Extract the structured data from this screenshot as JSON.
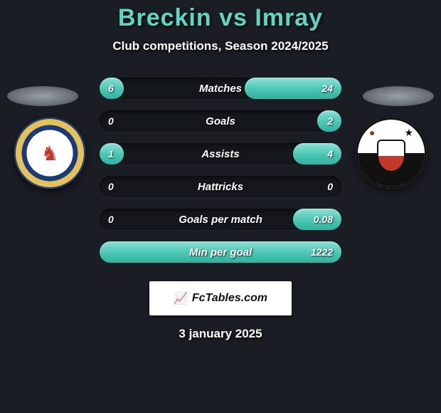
{
  "header": {
    "title": "Breckin vs Imray",
    "subtitle": "Club competitions, Season 2024/2025"
  },
  "teams": {
    "left": {
      "crest_name": "crewe-alexandra-crest"
    },
    "right": {
      "crest_name": "bromley-fc-crest"
    }
  },
  "stats": {
    "track_color": "#14171c",
    "bar_color_left": "#4fc9b7",
    "bar_color_right": "#4fc9b7",
    "label_color": "#ffffff",
    "rows": [
      {
        "label": "Matches",
        "left": "6",
        "right": "24",
        "left_pct": 10,
        "right_pct": 40
      },
      {
        "label": "Goals",
        "left": "0",
        "right": "2",
        "left_pct": 0,
        "right_pct": 10
      },
      {
        "label": "Assists",
        "left": "1",
        "right": "4",
        "left_pct": 10,
        "right_pct": 20
      },
      {
        "label": "Hattricks",
        "left": "0",
        "right": "0",
        "left_pct": 0,
        "right_pct": 0
      },
      {
        "label": "Goals per match",
        "left": "0",
        "right": "0.08",
        "left_pct": 0,
        "right_pct": 20
      },
      {
        "label": "Min per goal",
        "left": "",
        "right": "1222",
        "left_pct": 0,
        "right_pct": 100
      }
    ]
  },
  "footer": {
    "brand": "FcTables.com",
    "date": "3 january 2025"
  },
  "style": {
    "background": "#1a1d23",
    "title_color": "#5fd6c4",
    "text_color": "#ffffff",
    "title_fontsize": 34,
    "subtitle_fontsize": 17
  }
}
